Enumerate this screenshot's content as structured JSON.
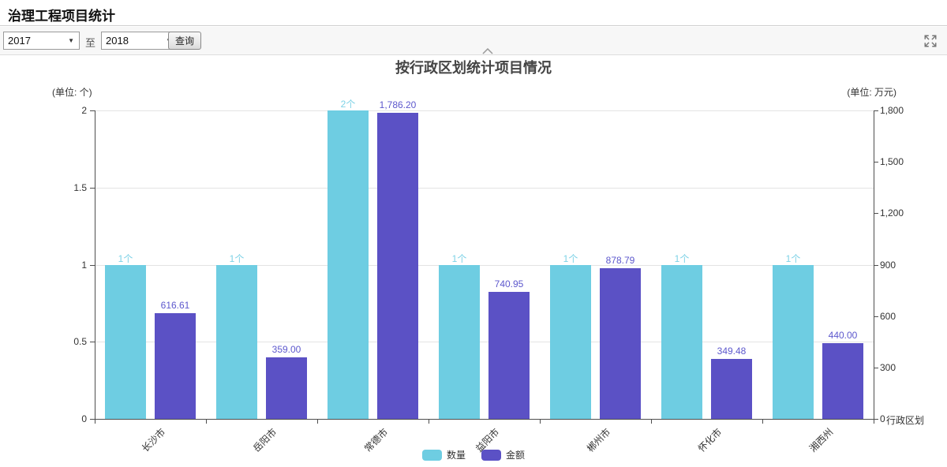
{
  "page": {
    "title": "治理工程项目统计"
  },
  "toolbar": {
    "year_from": "2017",
    "to_label": "至",
    "year_to": "2018",
    "query_button": "查询"
  },
  "chart_data": {
    "type": "bar",
    "title": "按行政区划统计项目情况",
    "categories": [
      "长沙市",
      "岳阳市",
      "常德市",
      "益阳市",
      "郴州市",
      "怀化市",
      "湘西州"
    ],
    "series": [
      {
        "name": "数量",
        "axis": "left",
        "color": "#6ecde2",
        "label_color": "#7ed2e6",
        "values": [
          1,
          1,
          2,
          1,
          1,
          1,
          1
        ],
        "labels": [
          "1个",
          "1个",
          "2个",
          "1个",
          "1个",
          "1个",
          "1个"
        ]
      },
      {
        "name": "金额",
        "axis": "right",
        "color": "#5b51c5",
        "label_color": "#5d58cd",
        "values": [
          616.61,
          359.0,
          1786.2,
          740.95,
          878.79,
          349.48,
          440.0
        ],
        "labels": [
          "616.61",
          "359.00",
          "1,786.20",
          "740.95",
          "878.79",
          "349.48",
          "440.00"
        ]
      }
    ],
    "left_axis": {
      "unit": "(单位: 个)",
      "max": 2,
      "ticks": [
        "2",
        "1.5",
        "1",
        "0.5",
        "0"
      ]
    },
    "right_axis": {
      "unit": "(单位: 万元)",
      "max": 1800,
      "ticks": [
        "1,800",
        "1,500",
        "1,200",
        "900",
        "600",
        "300",
        "0"
      ]
    },
    "x_axis_name": "行政区划",
    "legend_position": "bottom",
    "grid": true
  }
}
